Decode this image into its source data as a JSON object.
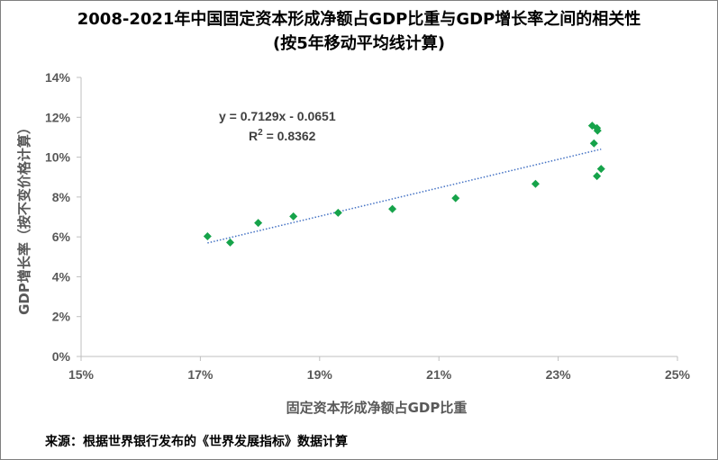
{
  "chart_data": {
    "type": "scatter",
    "title": "2008-2021年中国固定资本形成净额占GDP比重与GDP增长率之间的相关性",
    "subtitle": "(按5年移动平均线计算)",
    "xlabel": "固定资本形成净额占GDP比重",
    "ylabel": "GDP增长率（按不变价格计算）",
    "xlim": [
      0.15,
      0.25
    ],
    "ylim": [
      0,
      0.14
    ],
    "x_ticks": [
      "15%",
      "17%",
      "19%",
      "21%",
      "23%",
      "25%"
    ],
    "y_ticks": [
      "0%",
      "2%",
      "4%",
      "6%",
      "8%",
      "10%",
      "12%",
      "14%"
    ],
    "x_tick_values": [
      0.15,
      0.17,
      0.19,
      0.21,
      0.23,
      0.25
    ],
    "y_tick_values": [
      0,
      0.02,
      0.04,
      0.06,
      0.08,
      0.1,
      0.12,
      0.14
    ],
    "points": [
      {
        "x": 0.1712,
        "y": 0.0603
      },
      {
        "x": 0.175,
        "y": 0.0572
      },
      {
        "x": 0.1797,
        "y": 0.067
      },
      {
        "x": 0.1856,
        "y": 0.0703
      },
      {
        "x": 0.1931,
        "y": 0.0721
      },
      {
        "x": 0.2022,
        "y": 0.074
      },
      {
        "x": 0.2128,
        "y": 0.0794
      },
      {
        "x": 0.2262,
        "y": 0.0866
      },
      {
        "x": 0.2357,
        "y": 0.1158
      },
      {
        "x": 0.2365,
        "y": 0.1146
      },
      {
        "x": 0.2366,
        "y": 0.1133
      },
      {
        "x": 0.236,
        "y": 0.1069
      },
      {
        "x": 0.2372,
        "y": 0.0941
      },
      {
        "x": 0.2365,
        "y": 0.0905
      }
    ],
    "trendline": {
      "slope": 0.7129,
      "intercept": -0.0651,
      "x_range": [
        0.1712,
        0.2372
      ],
      "equation": "y = 0.7129x - 0.0651",
      "r2_prefix": "R",
      "r2_sup": "2",
      "r2_value": " = 0.8362",
      "style": "dotted"
    },
    "marker": "diamond",
    "grid": false,
    "legend": "none",
    "colors": {
      "marker": "#16a34a",
      "trendline": "#4472c4",
      "axis": "#bfbfbf",
      "tick_text": "#595959"
    }
  },
  "footer": {
    "source": "来源：根据世界银行发布的《世界发展指标》数据计算"
  }
}
